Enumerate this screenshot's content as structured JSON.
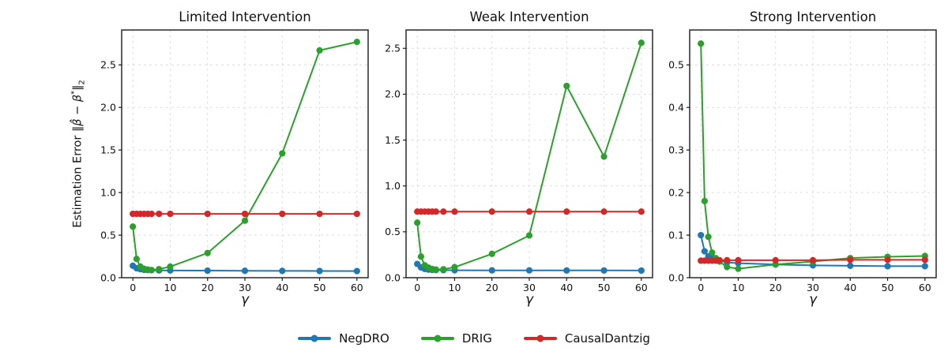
{
  "labels": {
    "ylabel_parts": {
      "prefix": "Estimation Error ",
      "norm_open": "‖",
      "beta_hat": "β̂",
      "minus": " − ",
      "beta": "β",
      "star": "*",
      "norm_close": "‖",
      "sub_two": "2"
    },
    "xlabel": "γ"
  },
  "colors": {
    "background": "#ffffff",
    "grid": "#d8d8d8",
    "axis": "#1a1a1a",
    "negdro_blue": "#1f77b4",
    "drig_green": "#2ca02c",
    "causaldantzig_red": "#d62728"
  },
  "chart_data": [
    {
      "type": "line",
      "title": "Limited Intervention",
      "xlabel": "γ",
      "ylabel": "Estimation Error ‖β̂ − β*‖₂",
      "x": [
        0,
        1,
        2,
        3,
        4,
        5,
        7,
        10,
        20,
        30,
        40,
        50,
        60
      ],
      "series": [
        {
          "name": "NegDRO",
          "color": "#1f77b4",
          "values": [
            0.14,
            0.11,
            0.1,
            0.092,
            0.09,
            0.088,
            0.086,
            0.085,
            0.083,
            0.081,
            0.08,
            0.079,
            0.078
          ]
        },
        {
          "name": "DRIG",
          "color": "#2ca02c",
          "values": [
            0.6,
            0.22,
            0.13,
            0.105,
            0.095,
            0.09,
            0.1,
            0.13,
            0.29,
            0.67,
            1.46,
            2.67,
            2.77
          ]
        },
        {
          "name": "CausalDantzig",
          "color": "#d62728",
          "values": [
            0.75,
            0.75,
            0.75,
            0.75,
            0.75,
            0.75,
            0.75,
            0.75,
            0.75,
            0.75,
            0.75,
            0.75,
            0.75
          ]
        }
      ],
      "xlim": [
        -3,
        63
      ],
      "ylim": [
        0,
        2.91
      ],
      "xticks": {
        "values": [
          0,
          10,
          20,
          30,
          40,
          50,
          60
        ],
        "labels": [
          "0",
          "10",
          "20",
          "30",
          "40",
          "50",
          "60"
        ]
      },
      "yticks": {
        "values": [
          0,
          0.5,
          1.0,
          1.5,
          2.0,
          2.5
        ],
        "labels": [
          "0.0",
          "0.5",
          "1.0",
          "1.5",
          "2.0",
          "2.5"
        ]
      },
      "grid": true
    },
    {
      "type": "line",
      "title": "Weak Intervention",
      "xlabel": "γ",
      "ylabel": "Estimation Error ‖β̂ − β*‖₂",
      "x": [
        0,
        1,
        2,
        3,
        4,
        5,
        7,
        10,
        20,
        30,
        40,
        50,
        60
      ],
      "series": [
        {
          "name": "NegDRO",
          "color": "#1f77b4",
          "values": [
            0.15,
            0.112,
            0.095,
            0.088,
            0.085,
            0.083,
            0.082,
            0.081,
            0.08,
            0.08,
            0.079,
            0.079,
            0.078
          ]
        },
        {
          "name": "DRIG",
          "color": "#2ca02c",
          "values": [
            0.6,
            0.23,
            0.135,
            0.11,
            0.095,
            0.088,
            0.092,
            0.115,
            0.26,
            0.46,
            2.09,
            1.32,
            2.56
          ]
        },
        {
          "name": "CausalDantzig",
          "color": "#d62728",
          "values": [
            0.72,
            0.72,
            0.72,
            0.72,
            0.72,
            0.72,
            0.72,
            0.72,
            0.72,
            0.72,
            0.72,
            0.72,
            0.72
          ]
        }
      ],
      "xlim": [
        -3,
        63
      ],
      "ylim": [
        0,
        2.7
      ],
      "xticks": {
        "values": [
          0,
          10,
          20,
          30,
          40,
          50,
          60
        ],
        "labels": [
          "0",
          "10",
          "20",
          "30",
          "40",
          "50",
          "60"
        ]
      },
      "yticks": {
        "values": [
          0,
          0.5,
          1.0,
          1.5,
          2.0,
          2.5
        ],
        "labels": [
          "0.0",
          "0.5",
          "1.0",
          "1.5",
          "2.0",
          "2.5"
        ]
      },
      "grid": true
    },
    {
      "type": "line",
      "title": "Strong Intervention",
      "xlabel": "γ",
      "ylabel": "Estimation Error ‖β̂ − β*‖₂",
      "x": [
        0,
        1,
        2,
        3,
        4,
        5,
        7,
        10,
        20,
        30,
        40,
        50,
        60
      ],
      "series": [
        {
          "name": "NegDRO",
          "color": "#1f77b4",
          "values": [
            0.1,
            0.062,
            0.05,
            0.046,
            0.043,
            0.04,
            0.036,
            0.034,
            0.031,
            0.029,
            0.028,
            0.027,
            0.027
          ]
        },
        {
          "name": "DRIG",
          "color": "#2ca02c",
          "values": [
            0.55,
            0.18,
            0.096,
            0.059,
            0.046,
            0.038,
            0.025,
            0.021,
            0.031,
            0.038,
            0.046,
            0.049,
            0.051
          ]
        },
        {
          "name": "CausalDantzig",
          "color": "#d62728",
          "values": [
            0.04,
            0.04,
            0.04,
            0.04,
            0.04,
            0.041,
            0.041,
            0.041,
            0.041,
            0.041,
            0.042,
            0.042,
            0.042
          ]
        }
      ],
      "xlim": [
        -3,
        63
      ],
      "ylim": [
        0,
        0.582
      ],
      "xticks": {
        "values": [
          0,
          10,
          20,
          30,
          40,
          50,
          60
        ],
        "labels": [
          "0",
          "10",
          "20",
          "30",
          "40",
          "50",
          "60"
        ]
      },
      "yticks": {
        "values": [
          0,
          0.1,
          0.2,
          0.3,
          0.4,
          0.5
        ],
        "labels": [
          "0.0",
          "0.1",
          "0.2",
          "0.3",
          "0.4",
          "0.5"
        ]
      },
      "grid": true
    }
  ],
  "legend": {
    "position": "bottom",
    "items": [
      {
        "label": "NegDRO",
        "color": "#1f77b4"
      },
      {
        "label": "DRIG",
        "color": "#2ca02c"
      },
      {
        "label": "CausalDantzig",
        "color": "#d62728"
      }
    ]
  }
}
